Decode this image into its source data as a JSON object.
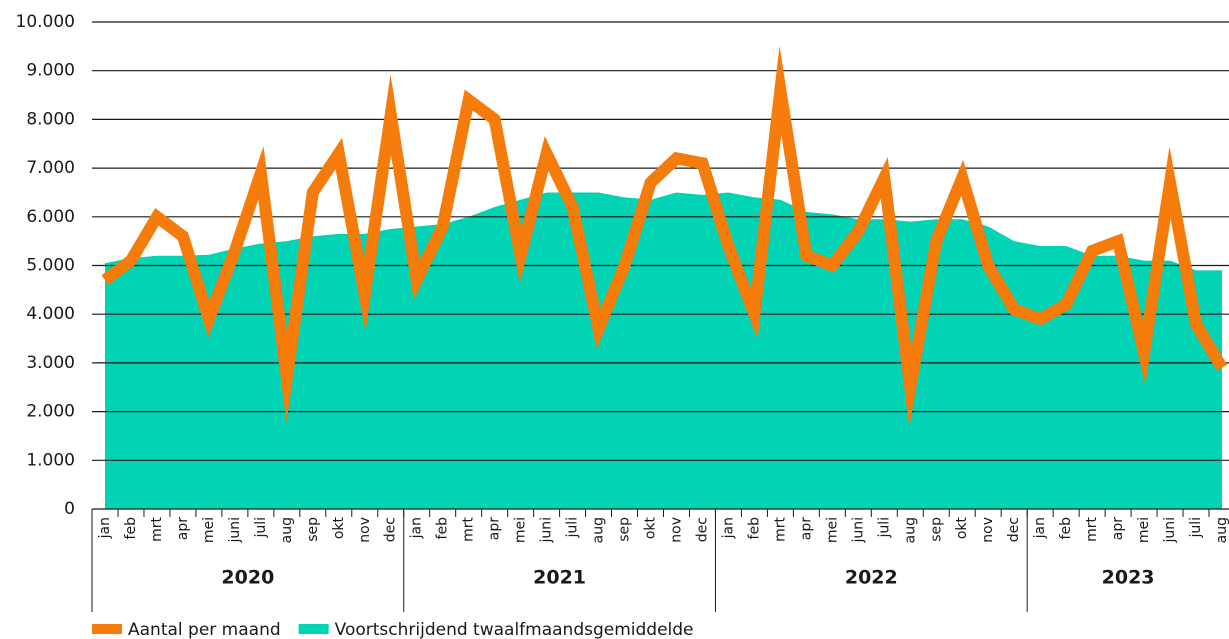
{
  "chart_data": {
    "type": "line",
    "categories": [
      "jan",
      "feb",
      "mrt",
      "apr",
      "mei",
      "juni",
      "juli",
      "aug",
      "sep",
      "okt",
      "nov",
      "dec",
      "jan",
      "feb",
      "mrt",
      "apr",
      "mei",
      "juni",
      "juli",
      "aug",
      "sep",
      "okt",
      "nov",
      "dec",
      "jan",
      "feb",
      "mrt",
      "apr",
      "mei",
      "juni",
      "juli",
      "aug",
      "sep",
      "okt",
      "nov",
      "dec",
      "jan",
      "feb",
      "mrt",
      "apr",
      "mei",
      "juni",
      "juli",
      "aug"
    ],
    "x_groups": [
      "2020",
      "2021",
      "2022",
      "2023"
    ],
    "series": [
      {
        "name": "Aantal per maand",
        "kind": "line",
        "color": "#f57b0a",
        "values": [
          4700,
          5100,
          6000,
          5600,
          3900,
          5300,
          6900,
          2700,
          6500,
          7300,
          4400,
          8100,
          4700,
          5800,
          8400,
          8000,
          5200,
          7300,
          6200,
          3700,
          5000,
          6700,
          7200,
          7100,
          5400,
          4000,
          8600,
          5200,
          5000,
          5700,
          6800,
          2500,
          5500,
          6800,
          5000,
          4100,
          3900,
          4200,
          5300,
          5500,
          3200,
          6700,
          3800,
          2900
        ]
      },
      {
        "name": "Voortschrijdend twaalfmaandsgemiddelde",
        "kind": "area",
        "color": "#00d4b4",
        "values": [
          5050,
          5150,
          5200,
          5200,
          5220,
          5350,
          5450,
          5500,
          5600,
          5650,
          5650,
          5750,
          5800,
          5850,
          6000,
          6200,
          6350,
          6500,
          6500,
          6500,
          6400,
          6350,
          6500,
          6450,
          6500,
          6400,
          6350,
          6100,
          6050,
          5950,
          5950,
          5900,
          5950,
          5950,
          5800,
          5500,
          5400,
          5400,
          5200,
          5200,
          5100,
          5100,
          4900,
          4900
        ]
      }
    ],
    "ylim": [
      0,
      10000
    ],
    "yticks": [
      0,
      {
        "value": 1000,
        "label": "1.000"
      },
      {
        "value": 2000,
        "label": "2.000"
      },
      {
        "value": 3000,
        "label": "3.000"
      },
      {
        "value": 4000,
        "label": "4.000"
      },
      {
        "value": 5000,
        "label": "5.000"
      },
      {
        "value": 6000,
        "label": "6.000"
      },
      {
        "value": 7000,
        "label": "7.000"
      },
      {
        "value": 8000,
        "label": "8.000"
      },
      {
        "value": 9000,
        "label": "9.000"
      },
      {
        "value": 10000,
        "label": "10.000"
      }
    ],
    "grid": true,
    "legend": "bottom-left"
  }
}
